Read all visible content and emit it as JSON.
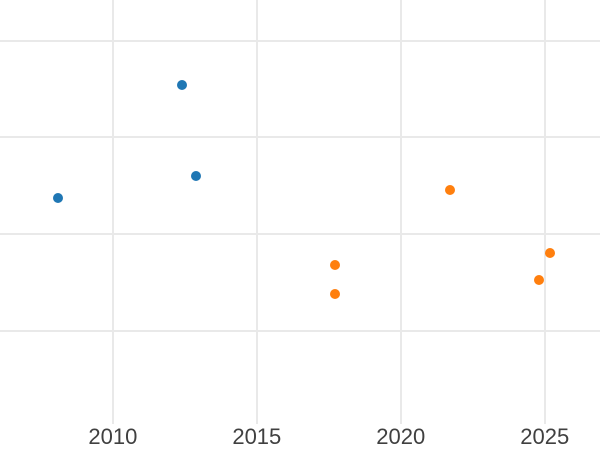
{
  "figure": {
    "background_color": "#ffffff",
    "grid_color": "#e9e9e9",
    "tick_label_color": "#404040"
  },
  "chart_data": {
    "type": "scatter",
    "title": "",
    "xlabel": "",
    "ylabel": "",
    "grid": true,
    "legend": false,
    "x_ticks": [
      2010,
      2015,
      2020,
      2025
    ],
    "x_tick_labels": [
      "2010",
      "2015",
      "2020",
      "2025"
    ],
    "xlim": [
      2006.08,
      2026.92
    ],
    "y_tick_labels_visible": false,
    "y_unit": "gridline-units (bottom visible gridline = 0, spacing = 1; no y labels shown)",
    "y_gridlines": [
      0,
      1,
      2,
      3
    ],
    "ylim": [
      -0.955,
      3.418
    ],
    "marker_size_px": 10,
    "series": [
      {
        "name": "blue-series",
        "color": "#1f77b4",
        "points": [
          {
            "x": 2008.1,
            "y": 1.38
          },
          {
            "x": 2012.4,
            "y": 2.54
          },
          {
            "x": 2012.9,
            "y": 1.6
          }
        ]
      },
      {
        "name": "orange-series",
        "color": "#ff7f0e",
        "points": [
          {
            "x": 2017.7,
            "y": 0.68
          },
          {
            "x": 2017.7,
            "y": 0.39
          },
          {
            "x": 2021.7,
            "y": 1.46
          },
          {
            "x": 2024.8,
            "y": 0.53
          },
          {
            "x": 2025.2,
            "y": 0.81
          }
        ]
      }
    ]
  }
}
